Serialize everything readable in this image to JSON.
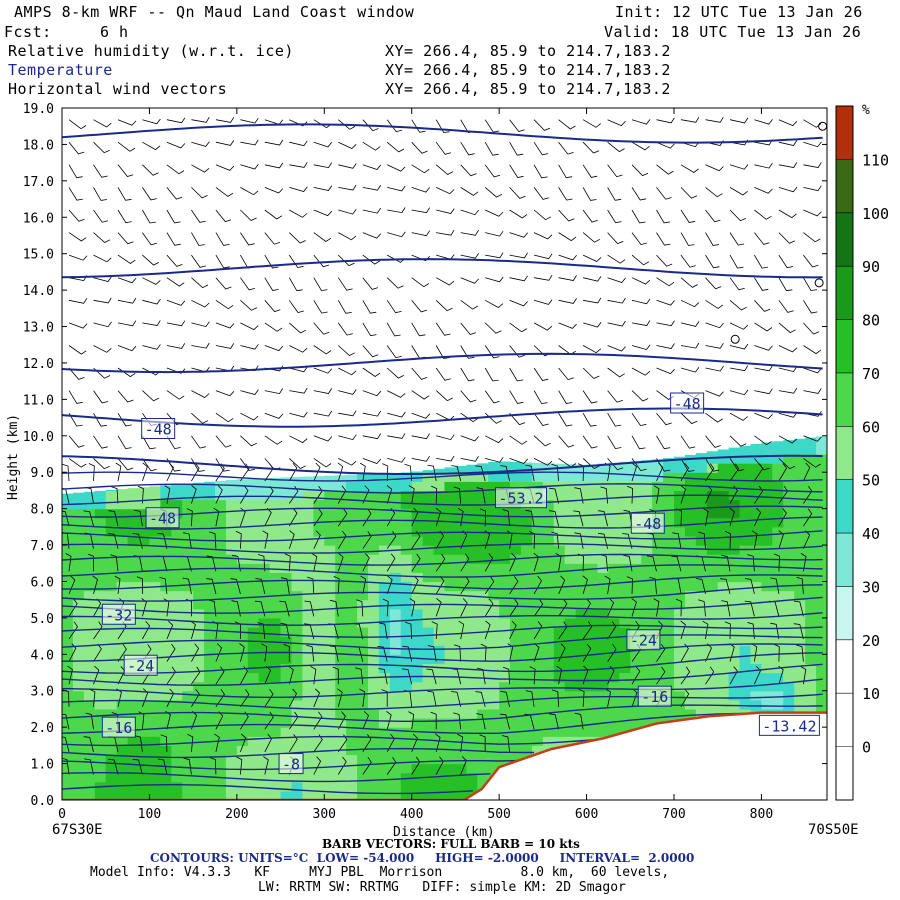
{
  "header": {
    "title": "AMPS 8-km WRF -- Qn Maud Land Coast window",
    "init": "Init: 12 UTC Tue 13 Jan 26",
    "fcst_label": "Fcst:",
    "fcst_value": "6 h",
    "valid": "Valid: 18 UTC Tue 13 Jan 26",
    "fields": [
      {
        "name": "Relative humidity (w.r.t. ice)",
        "xy": "XY= 266.4, 85.9 to 214.7,183.2"
      },
      {
        "name": "Temperature",
        "xy": "XY= 266.4, 85.9 to 214.7,183.2"
      },
      {
        "name": "Horizontal wind vectors",
        "xy": "XY= 266.4, 85.9 to 214.7,183.2"
      }
    ]
  },
  "footer": {
    "left_coord": "67S30E",
    "right_coord": "70S50E",
    "barb": "BARB VECTORS: FULL BARB = 10 kts",
    "contours": "CONTOURS: UNITS=°C  LOW= -54.000     HIGH= -2.0000     INTERVAL=  2.0000",
    "model": "Model Info: V4.3.3   KF     MYJ PBL  Morrison          8.0 km,  60 levels,",
    "physics": "LW: RRTM SW: RRTMG   DIFF: simple KM: 2D Smagor"
  },
  "colors": {
    "temp_contour": "#1a2a8a",
    "terrain": "#c0401a"
  },
  "chart_data": {
    "type": "heatmap",
    "title": "Cross-section: Relative humidity (w.r.t. ice), Temperature, Horizontal wind vectors",
    "xlabel": "Distance (km)",
    "ylabel": "Height (km)",
    "xlim": [
      0,
      875
    ],
    "ylim": [
      0,
      19
    ],
    "x_ticks": [
      0,
      100,
      200,
      300,
      400,
      500,
      600,
      700,
      800
    ],
    "x_tick_labels": [
      "0",
      "100",
      "200",
      "300",
      "400",
      "500",
      "600",
      "700",
      "800"
    ],
    "y_ticks": [
      0,
      1,
      2,
      3,
      4,
      5,
      6,
      7,
      8,
      9,
      10,
      11,
      12,
      13,
      14,
      15,
      16,
      17,
      18,
      19
    ],
    "y_tick_labels": [
      "0.0",
      "1.0",
      "2.0",
      "3.0",
      "4.0",
      "5.0",
      "6.0",
      "7.0",
      "8.0",
      "9.0",
      "10.0",
      "11.0",
      "12.0",
      "13.0",
      "14.0",
      "15.0",
      "16.0",
      "17.0",
      "18.0",
      "19.0"
    ],
    "colorbar": {
      "unit": "%",
      "levels": [
        0,
        10,
        20,
        30,
        40,
        50,
        60,
        70,
        80,
        90,
        100,
        110
      ],
      "labels": [
        "0",
        "10",
        "20",
        "30",
        "40",
        "50",
        "60",
        "70",
        "80",
        "90",
        "100",
        "110"
      ],
      "colors": [
        "#ffffff",
        "#ffffff",
        "#ffffff",
        "#c8f5ee",
        "#7de8d6",
        "#3dd8c8",
        "#8fe88a",
        "#4cd84a",
        "#26c026",
        "#1a9a1a",
        "#137513",
        "#3a6a14",
        "#b0300c"
      ]
    },
    "rh_bands": [
      {
        "x": 0,
        "rh_top_km": 8.4
      },
      {
        "x": 100,
        "rh_top_km": 8.6
      },
      {
        "x": 200,
        "rh_top_km": 8.8
      },
      {
        "x": 300,
        "rh_top_km": 8.9
      },
      {
        "x": 400,
        "rh_top_km": 9.0
      },
      {
        "x": 500,
        "rh_top_km": 9.3
      },
      {
        "x": 600,
        "rh_top_km": 9.2
      },
      {
        "x": 700,
        "rh_top_km": 9.4
      },
      {
        "x": 800,
        "rh_top_km": 9.8
      },
      {
        "x": 875,
        "rh_top_km": 10.0
      }
    ],
    "terrain": [
      {
        "x": 0,
        "z": 0
      },
      {
        "x": 460,
        "z": 0
      },
      {
        "x": 480,
        "z": 0.3
      },
      {
        "x": 500,
        "z": 0.9
      },
      {
        "x": 560,
        "z": 1.4
      },
      {
        "x": 620,
        "z": 1.7
      },
      {
        "x": 680,
        "z": 2.1
      },
      {
        "x": 740,
        "z": 2.3
      },
      {
        "x": 800,
        "z": 2.4
      },
      {
        "x": 875,
        "z": 2.4
      }
    ],
    "temperature_labels": [
      {
        "text": "-48",
        "x": 110,
        "z": 10.2
      },
      {
        "text": "-48",
        "x": 115,
        "z": 7.75
      },
      {
        "text": "-48",
        "x": 715,
        "z": 10.9
      },
      {
        "text": "-48",
        "x": 670,
        "z": 7.6
      },
      {
        "text": "-53.2",
        "x": 525,
        "z": 8.3
      },
      {
        "text": "-32",
        "x": 65,
        "z": 5.1
      },
      {
        "text": "-24",
        "x": 90,
        "z": 3.7
      },
      {
        "text": "-24",
        "x": 665,
        "z": 4.4
      },
      {
        "text": "-16",
        "x": 65,
        "z": 2.0
      },
      {
        "text": "-16",
        "x": 678,
        "z": 2.85
      },
      {
        "text": "-8",
        "x": 262,
        "z": 1.0
      },
      {
        "text": "-13.42",
        "x": 832,
        "z": 2.05
      }
    ],
    "circles": [
      {
        "x": 870,
        "z": 18.5
      },
      {
        "x": 866,
        "z": 14.2
      },
      {
        "x": 770,
        "z": 12.65
      }
    ]
  }
}
